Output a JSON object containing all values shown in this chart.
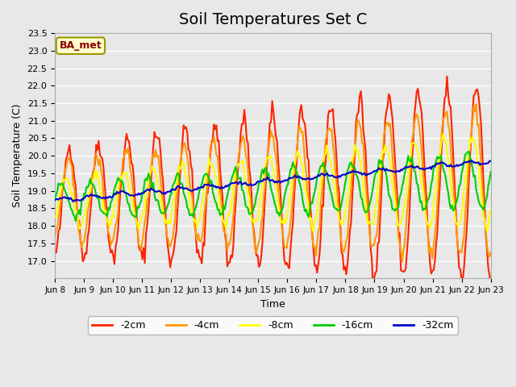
{
  "title": "Soil Temperatures Set C",
  "xlabel": "Time",
  "ylabel": "Soil Temperature (C)",
  "ylim": [
    16.5,
    23.5
  ],
  "plot_bg_color": "#e8e8e8",
  "legend_label": "BA_met",
  "legend_bg": "#ffffcc",
  "legend_border": "#999900",
  "series_colors": {
    "-2cm": "#ff2200",
    "-4cm": "#ff9900",
    "-8cm": "#ffff00",
    "-16cm": "#00cc00",
    "-32cm": "#0000cc"
  },
  "x_tick_labels": [
    "Jun 8",
    "Jun 9",
    "Jun 10",
    "Jun 11",
    "Jun 12",
    "Jun 13",
    "Jun 14",
    "Jun 15",
    "Jun 16",
    "Jun 17",
    "Jun 18",
    "Jun 19",
    "Jun 20",
    "Jun 21",
    "Jun 22",
    "Jun 23"
  ],
  "n_days": 15,
  "points_per_day": 24,
  "title_fontsize": 14
}
